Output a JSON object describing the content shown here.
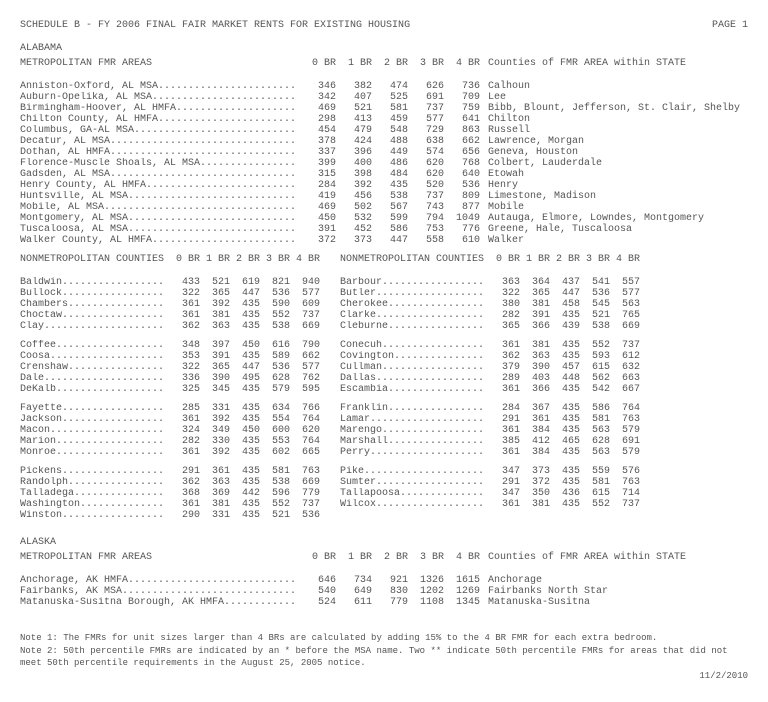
{
  "title": "SCHEDULE B - FY 2006 FINAL FAIR MARKET RENTS FOR EXISTING HOUSING",
  "page": "PAGE  1",
  "state1": "ALABAMA",
  "metroLbl": "METROPOLITAN FMR AREAS",
  "brCols": [
    "0 BR",
    "1 BR",
    "2 BR",
    "3 BR",
    "4 BR"
  ],
  "countiesLbl": "Counties of FMR AREA within STATE",
  "alMetro": [
    {
      "n": "Anniston-Oxford, AL MSA",
      "v": [
        346,
        382,
        474,
        626,
        736
      ],
      "c": "Calhoun"
    },
    {
      "n": "Auburn-Opelika, AL MSA",
      "v": [
        342,
        407,
        525,
        691,
        709
      ],
      "c": "Lee"
    },
    {
      "n": "Birmingham-Hoover, AL HMFA",
      "v": [
        469,
        521,
        581,
        737,
        759
      ],
      "c": "Bibb, Blount, Jefferson, St. Clair, Shelby"
    },
    {
      "n": "Chilton County, AL HMFA",
      "v": [
        298,
        413,
        459,
        577,
        641
      ],
      "c": "Chilton"
    },
    {
      "n": "Columbus, GA-AL MSA",
      "v": [
        454,
        479,
        548,
        729,
        863
      ],
      "c": "Russell"
    },
    {
      "n": "Decatur, AL MSA",
      "v": [
        378,
        424,
        488,
        638,
        662
      ],
      "c": "Lawrence, Morgan"
    },
    {
      "n": "Dothan, AL HMFA",
      "v": [
        337,
        396,
        449,
        574,
        656
      ],
      "c": "Geneva, Houston"
    },
    {
      "n": "Florence-Muscle Shoals, AL MSA",
      "v": [
        399,
        400,
        486,
        620,
        768
      ],
      "c": "Colbert, Lauderdale"
    },
    {
      "n": "Gadsden, AL MSA",
      "v": [
        315,
        398,
        484,
        620,
        640
      ],
      "c": "Etowah"
    },
    {
      "n": "Henry County, AL HMFA",
      "v": [
        284,
        392,
        435,
        520,
        536
      ],
      "c": "Henry"
    },
    {
      "n": "Huntsville, AL MSA",
      "v": [
        419,
        456,
        538,
        737,
        809
      ],
      "c": "Limestone, Madison"
    },
    {
      "n": "Mobile, AL MSA",
      "v": [
        469,
        502,
        567,
        743,
        877
      ],
      "c": "Mobile"
    },
    {
      "n": "Montgomery, AL MSA",
      "v": [
        450,
        532,
        599,
        794,
        1049
      ],
      "c": "Autauga, Elmore, Lowndes, Montgomery"
    },
    {
      "n": "Tuscaloosa, AL MSA",
      "v": [
        391,
        452,
        586,
        753,
        776
      ],
      "c": "Greene, Hale, Tuscaloosa"
    },
    {
      "n": "Walker County, AL HMFA",
      "v": [
        372,
        373,
        447,
        558,
        610
      ],
      "c": "Walker"
    }
  ],
  "nonLbl": "NONMETROPOLITAN COUNTIES",
  "alNonL": [
    [
      {
        "n": "Baldwin",
        "v": [
          433,
          521,
          619,
          821,
          940
        ]
      },
      {
        "n": "Bullock",
        "v": [
          322,
          365,
          447,
          536,
          577
        ]
      },
      {
        "n": "Chambers",
        "v": [
          361,
          392,
          435,
          590,
          609
        ]
      },
      {
        "n": "Choctaw",
        "v": [
          361,
          381,
          435,
          552,
          737
        ]
      },
      {
        "n": "Clay",
        "v": [
          362,
          363,
          435,
          538,
          669
        ]
      }
    ],
    [
      {
        "n": "Coffee",
        "v": [
          348,
          397,
          450,
          616,
          790
        ]
      },
      {
        "n": "Coosa",
        "v": [
          353,
          391,
          435,
          589,
          662
        ]
      },
      {
        "n": "Crenshaw",
        "v": [
          322,
          365,
          447,
          536,
          577
        ]
      },
      {
        "n": "Dale",
        "v": [
          336,
          390,
          495,
          628,
          762
        ]
      },
      {
        "n": "DeKalb",
        "v": [
          325,
          345,
          435,
          579,
          595
        ]
      }
    ],
    [
      {
        "n": "Fayette",
        "v": [
          285,
          331,
          435,
          634,
          766
        ]
      },
      {
        "n": "Jackson",
        "v": [
          361,
          392,
          435,
          554,
          764
        ]
      },
      {
        "n": "Macon",
        "v": [
          324,
          349,
          450,
          600,
          620
        ]
      },
      {
        "n": "Marion",
        "v": [
          282,
          330,
          435,
          553,
          764
        ]
      },
      {
        "n": "Monroe",
        "v": [
          361,
          392,
          435,
          602,
          665
        ]
      }
    ],
    [
      {
        "n": "Pickens",
        "v": [
          291,
          361,
          435,
          581,
          763
        ]
      },
      {
        "n": "Randolph",
        "v": [
          362,
          363,
          435,
          538,
          669
        ]
      },
      {
        "n": "Talladega",
        "v": [
          368,
          369,
          442,
          596,
          779
        ]
      },
      {
        "n": "Washington",
        "v": [
          361,
          381,
          435,
          552,
          737
        ]
      },
      {
        "n": "Winston",
        "v": [
          290,
          331,
          435,
          521,
          536
        ]
      }
    ]
  ],
  "alNonR": [
    [
      {
        "n": "Barbour",
        "v": [
          363,
          364,
          437,
          541,
          557
        ]
      },
      {
        "n": "Butler",
        "v": [
          322,
          365,
          447,
          536,
          577
        ]
      },
      {
        "n": "Cherokee",
        "v": [
          380,
          381,
          458,
          545,
          563
        ]
      },
      {
        "n": "Clarke",
        "v": [
          282,
          391,
          435,
          521,
          765
        ]
      },
      {
        "n": "Cleburne",
        "v": [
          365,
          366,
          439,
          538,
          669
        ]
      }
    ],
    [
      {
        "n": "Conecuh",
        "v": [
          361,
          381,
          435,
          552,
          737
        ]
      },
      {
        "n": "Covington",
        "v": [
          362,
          363,
          435,
          593,
          612
        ]
      },
      {
        "n": "Cullman",
        "v": [
          379,
          390,
          457,
          615,
          632
        ]
      },
      {
        "n": "Dallas",
        "v": [
          289,
          403,
          448,
          562,
          663
        ]
      },
      {
        "n": "Escambia",
        "v": [
          361,
          366,
          435,
          542,
          667
        ]
      }
    ],
    [
      {
        "n": "Franklin",
        "v": [
          284,
          367,
          435,
          586,
          764
        ]
      },
      {
        "n": "Lamar",
        "v": [
          291,
          361,
          435,
          581,
          763
        ]
      },
      {
        "n": "Marengo",
        "v": [
          361,
          384,
          435,
          563,
          579
        ]
      },
      {
        "n": "Marshall",
        "v": [
          385,
          412,
          465,
          628,
          691
        ]
      },
      {
        "n": "Perry",
        "v": [
          361,
          384,
          435,
          563,
          579
        ]
      }
    ],
    [
      {
        "n": "Pike",
        "v": [
          347,
          373,
          435,
          559,
          576
        ]
      },
      {
        "n": "Sumter",
        "v": [
          291,
          372,
          435,
          581,
          763
        ]
      },
      {
        "n": "Tallapoosa",
        "v": [
          347,
          350,
          436,
          615,
          714
        ]
      },
      {
        "n": "Wilcox",
        "v": [
          361,
          381,
          435,
          552,
          737
        ]
      }
    ]
  ],
  "state2": "ALASKA",
  "akMetro": [
    {
      "n": "Anchorage, AK HMFA",
      "v": [
        646,
        734,
        921,
        1326,
        1615
      ],
      "c": "Anchorage"
    },
    {
      "n": "Fairbanks, AK MSA",
      "v": [
        540,
        649,
        830,
        1202,
        1269
      ],
      "c": "Fairbanks North Star"
    },
    {
      "n": "Matanuska-Susitna Borough, AK HMFA",
      "v": [
        524,
        611,
        779,
        1108,
        1345
      ],
      "c": "Matanuska-Susitna"
    }
  ],
  "note1": "Note 1:  The FMRs for unit sizes larger than 4 BRs are calculated by adding 15% to the 4 BR FMR for each extra bedroom.",
  "note2": "Note 2:  50th percentile FMRs are indicated by an * before the MSA name.  Two ** indicate 50th percentile FMRs for areas that did not meet 50th percentile requirements in the August 25, 2005 notice.",
  "date": "11/2/2010"
}
